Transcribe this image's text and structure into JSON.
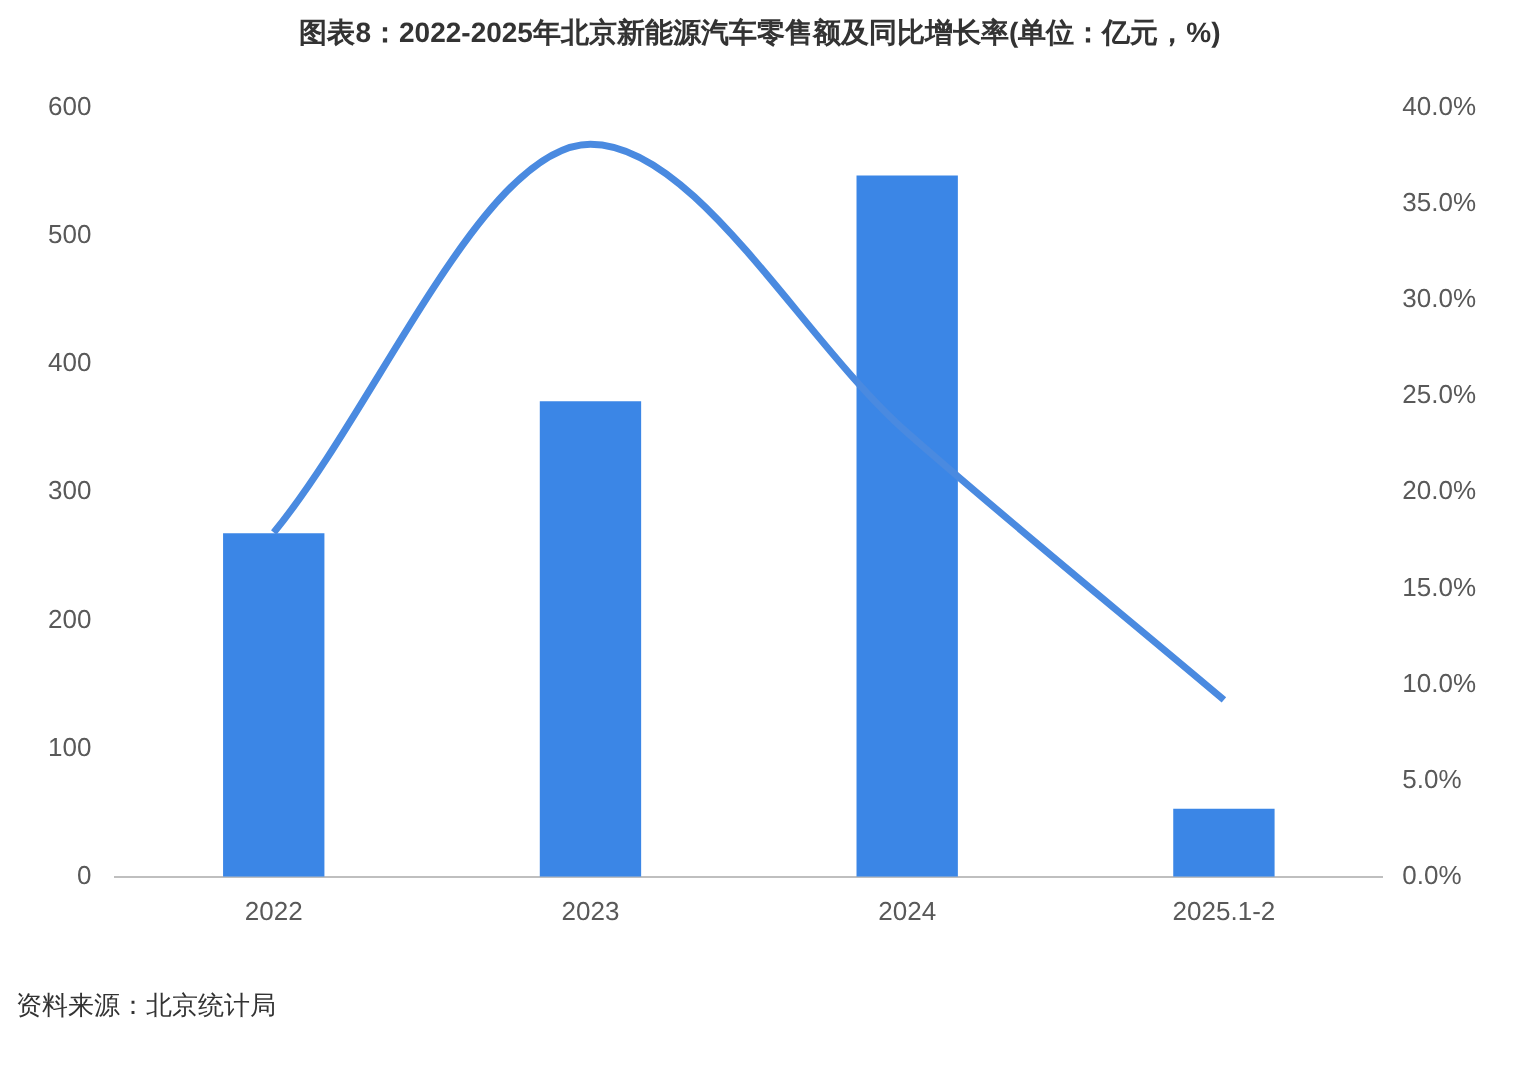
{
  "chart_data": {
    "type": "bar",
    "title": "图表8：2022-2025年北京新能源汽车零售额及同比增长率(单位：亿元，%)",
    "categories": [
      "2022",
      "2023",
      "2024",
      "2025.1-2"
    ],
    "series": [
      {
        "color": "#3b86e6",
        "values": [
          268,
          371,
          547,
          53
        ]
      },
      {
        "type": "line",
        "axis": "y2",
        "color": "#4a8ae0",
        "marker": "none",
        "values": [
          17.9,
          38.1,
          23.1,
          9.2
        ]
      }
    ],
    "ylim": [
      0,
      600
    ],
    "yticks": [
      0,
      100,
      200,
      300,
      400,
      500,
      600
    ],
    "y2lim": [
      0,
      40
    ],
    "y2ticks": [
      {
        "value": 0,
        "label": "0.0%"
      },
      {
        "value": 5,
        "label": "5.0%"
      },
      {
        "value": 10,
        "label": "10.0%"
      },
      {
        "value": 15,
        "label": "15.0%"
      },
      {
        "value": 20,
        "label": "20.0%"
      },
      {
        "value": 25,
        "label": "25.0%"
      },
      {
        "value": 30,
        "label": "30.0%"
      },
      {
        "value": 35,
        "label": "35.0%"
      },
      {
        "value": 40,
        "label": "40.0%"
      }
    ],
    "annotations": [
      "资料来源：北京统计局"
    ]
  }
}
